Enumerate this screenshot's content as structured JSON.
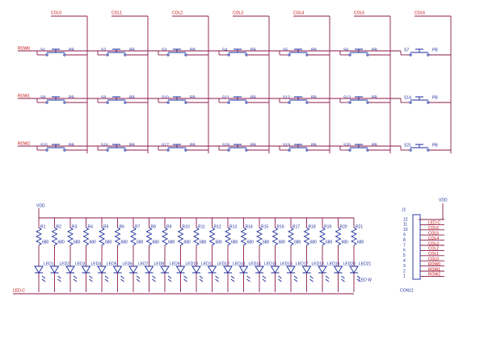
{
  "matrix": {
    "columns": [
      "COL0",
      "COL1",
      "COL2",
      "COL3",
      "COL4",
      "COL5",
      "COL6"
    ],
    "rows": [
      "ROW0",
      "ROW1",
      "ROW2"
    ],
    "switches": [
      [
        "S1",
        "S2",
        "S3",
        "S4",
        "S5",
        "S6",
        "S7"
      ],
      [
        "S8",
        "S9",
        "S10",
        "S11",
        "S12",
        "S13",
        "S14"
      ],
      [
        "S15",
        "S16",
        "S17",
        "S18",
        "S19",
        "S20",
        "S21"
      ]
    ],
    "switch_type": "PB"
  },
  "leds": {
    "supply": "VDD",
    "common": "LED-C",
    "resistors": [
      "R1",
      "R2",
      "R3",
      "R4",
      "R5",
      "R6",
      "R7",
      "R8",
      "R9",
      "R10",
      "R11",
      "R12",
      "R13",
      "R14",
      "R15",
      "R16",
      "R17",
      "R18",
      "R19",
      "R20",
      "R21"
    ],
    "resistor_value": "680",
    "diodes": [
      "LED1",
      "LED2",
      "LED3",
      "LED4",
      "LED5",
      "LED6",
      "LED7",
      "LED8",
      "LED9",
      "LED10",
      "LED11",
      "LED12",
      "LED13",
      "LED14",
      "LED15",
      "LED16",
      "LED17",
      "LED18",
      "LED19",
      "LED20",
      "LED21"
    ],
    "diode_type": "LED W"
  },
  "connector": {
    "ref": "J1",
    "supply": "VDD",
    "part": "CON12",
    "pins": [
      "12",
      "11",
      "10",
      "9",
      "8",
      "7",
      "6",
      "5",
      "4",
      "3",
      "2",
      "1"
    ],
    "nets": [
      "LED-C",
      "COL6",
      "COL5",
      "COL4",
      "COL3",
      "COL2",
      "COL1",
      "COL0",
      "ROW0",
      "ROW1",
      "ROW2"
    ]
  }
}
